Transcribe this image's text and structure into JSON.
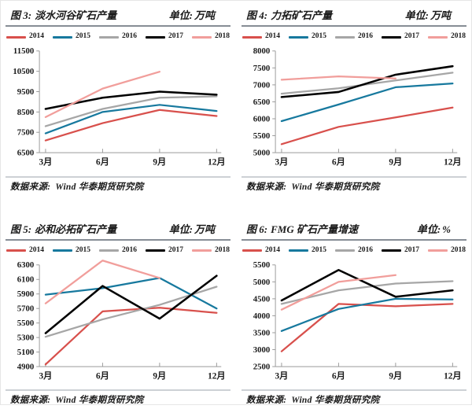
{
  "source_footer": {
    "label": "数据来源:",
    "value": "Wind 华泰期货研究院"
  },
  "axis": {
    "color": "#9a9a9a",
    "label_color": "#1a1a1a"
  },
  "chart_data": [
    {
      "type": "line",
      "figure_label": "图 3:",
      "title": "淡水河谷矿石产量",
      "unit_label": "单位:",
      "unit": "万吨",
      "x_categories": [
        "3月",
        "6月",
        "9月",
        "12月"
      ],
      "ylim": [
        6500,
        11500
      ],
      "ytick_step": 1000,
      "grid": false,
      "legend_position": "top",
      "series": [
        {
          "name": "2014",
          "color": "#d8504c",
          "values": [
            7100,
            7950,
            8600,
            8300
          ]
        },
        {
          "name": "2015",
          "color": "#17799e",
          "values": [
            7450,
            8500,
            8850,
            8550
          ]
        },
        {
          "name": "2016",
          "color": "#a6a6a6",
          "values": [
            7800,
            8650,
            9200,
            9270
          ]
        },
        {
          "name": "2017",
          "color": "#000000",
          "values": [
            8650,
            9200,
            9500,
            9350
          ]
        },
        {
          "name": "2018",
          "color": "#f19e9b",
          "values": [
            8250,
            9650,
            10480,
            null
          ]
        }
      ],
      "source_label": "数据来源:",
      "source_value": "Wind 华泰期货研究院"
    },
    {
      "type": "line",
      "figure_label": "图 4:",
      "title": "力拓矿石产量",
      "unit_label": "单位:",
      "unit": "万吨",
      "x_categories": [
        "3月",
        "6月",
        "9月",
        "12月"
      ],
      "ylim": [
        5000,
        8000
      ],
      "ytick_step": 500,
      "grid": false,
      "legend_position": "top",
      "series": [
        {
          "name": "2014",
          "color": "#d8504c",
          "values": [
            5250,
            5760,
            6040,
            6330
          ]
        },
        {
          "name": "2015",
          "color": "#17799e",
          "values": [
            5930,
            6420,
            6930,
            7040
          ]
        },
        {
          "name": "2016",
          "color": "#a6a6a6",
          "values": [
            6740,
            6900,
            7130,
            7360
          ]
        },
        {
          "name": "2017",
          "color": "#000000",
          "values": [
            6640,
            6790,
            7300,
            7550
          ]
        },
        {
          "name": "2018",
          "color": "#f19e9b",
          "values": [
            7150,
            7250,
            7190,
            null
          ]
        }
      ],
      "source_label": "数据来源:",
      "source_value": "Wind 华泰期货研究院"
    },
    {
      "type": "line",
      "figure_label": "图 5:",
      "title": "必和必拓矿石产量",
      "unit_label": "单位:",
      "unit": "万吨",
      "x_categories": [
        "3月",
        "6月",
        "9月",
        "12月"
      ],
      "ylim": [
        4900,
        6300
      ],
      "ytick_step": 200,
      "grid": false,
      "legend_position": "top",
      "series": [
        {
          "name": "2014",
          "color": "#d8504c",
          "values": [
            4930,
            5660,
            5710,
            5640
          ]
        },
        {
          "name": "2015",
          "color": "#17799e",
          "values": [
            5890,
            5980,
            6120,
            5700
          ]
        },
        {
          "name": "2016",
          "color": "#a6a6a6",
          "values": [
            5310,
            5550,
            5750,
            6000
          ]
        },
        {
          "name": "2017",
          "color": "#000000",
          "values": [
            5360,
            6010,
            5560,
            6150
          ]
        },
        {
          "name": "2018",
          "color": "#f19e9b",
          "values": [
            5770,
            6360,
            6120,
            null
          ]
        }
      ],
      "source_label": "数据来源:",
      "source_value": "Wind 华泰期货研究院"
    },
    {
      "type": "line",
      "figure_label": "图 6:",
      "title": "FMG 矿石产量增速",
      "unit_label": "单位:",
      "unit": "%",
      "x_categories": [
        "3月",
        "6月",
        "9月",
        "12月"
      ],
      "ylim": [
        2500,
        5500
      ],
      "ytick_step": 500,
      "grid": false,
      "legend_position": "top",
      "series": [
        {
          "name": "2014",
          "color": "#d8504c",
          "values": [
            2950,
            4350,
            4280,
            4350
          ]
        },
        {
          "name": "2015",
          "color": "#17799e",
          "values": [
            3550,
            4200,
            4500,
            4480
          ]
        },
        {
          "name": "2016",
          "color": "#a6a6a6",
          "values": [
            4350,
            4750,
            4950,
            5020
          ]
        },
        {
          "name": "2017",
          "color": "#000000",
          "values": [
            4450,
            5350,
            4560,
            4750
          ]
        },
        {
          "name": "2018",
          "color": "#f19e9b",
          "values": [
            4180,
            5000,
            5200,
            null
          ]
        }
      ],
      "source_label": "数据来源:",
      "source_value": "Wind 华泰期货研究院"
    }
  ]
}
